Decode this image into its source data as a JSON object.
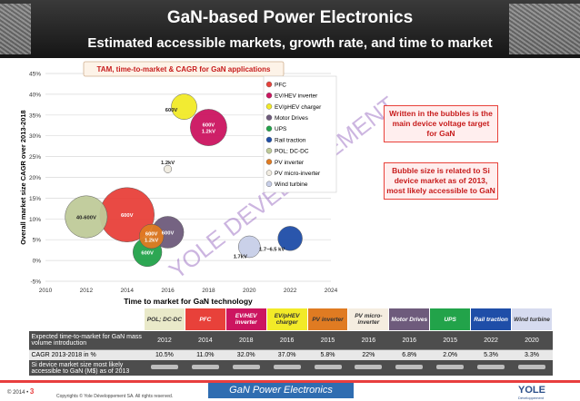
{
  "header": {
    "title": "GaN-based Power Electronics",
    "subtitle": "Estimated accessible markets, growth rate, and time to market"
  },
  "chart_data": {
    "type": "scatter",
    "subtype": "bubble",
    "title": "TAM, time-to-market & CAGR for GaN applications",
    "xlabel": "Time to market for GaN technology",
    "ylabel": "Overall market size CAGR over 2013-2018",
    "xlim": [
      2010,
      2024
    ],
    "ylim": [
      -5,
      45
    ],
    "x_ticks": [
      2010,
      2012,
      2014,
      2016,
      2018,
      2020,
      2022,
      2024
    ],
    "y_ticks": [
      "-5%",
      "0%",
      "5%",
      "10%",
      "15%",
      "20%",
      "25%",
      "30%",
      "35%",
      "40%",
      "45%"
    ],
    "y_unit": "%",
    "grid": true,
    "legend_position": "right",
    "watermark": "YOLE DEVELOPPEMENT",
    "series": [
      {
        "name": "PFC",
        "color": "#e8413a",
        "x": 2014,
        "y": 11,
        "size": 1.0,
        "label": "600V"
      },
      {
        "name": "EV/HEV inverter",
        "color": "#cc1560",
        "x": 2018,
        "y": 32,
        "size": 0.45,
        "label": "600V\n1.2kV"
      },
      {
        "name": "EV/pHEV charger",
        "color": "#f2ea28",
        "x": 2016.8,
        "y": 37,
        "size": 0.22,
        "label": "600V"
      },
      {
        "name": "Motor Drives",
        "color": "#6e5b7c",
        "x": 2016,
        "y": 6.8,
        "size": 0.34,
        "label": "600V"
      },
      {
        "name": "UPS",
        "color": "#22a34a",
        "x": 2015,
        "y": 2,
        "size": 0.28,
        "label": "600V"
      },
      {
        "name": "Rail traction",
        "color": "#1f4ea8",
        "x": 2022,
        "y": 5.3,
        "size": 0.2,
        "label": "1.7~6.5 kV"
      },
      {
        "name": "POL; DC-DC",
        "color": "#bfcb99",
        "x": 2012,
        "y": 10.5,
        "size": 0.6,
        "label": "40-600V"
      },
      {
        "name": "PV inverter",
        "color": "#e07b22",
        "x": 2015.2,
        "y": 5.8,
        "size": 0.2,
        "label": "600V\n1.2kV"
      },
      {
        "name": "PV micro-inverter",
        "color": "#f0ebe0",
        "x": 2016,
        "y": 22,
        "size": 0.02,
        "label": "1.2kV"
      },
      {
        "name": "Wind turbine",
        "color": "#c8cfe8",
        "x": 2020,
        "y": 3.3,
        "size": 0.16,
        "label": "1.7kV"
      }
    ]
  },
  "callouts": {
    "voltage": "Written in the bubbles is the main device voltage target for GaN",
    "size": "Bubble size is related to Si device market as of 2013, most likely accessible to GaN"
  },
  "table": {
    "columns": [
      {
        "label": "POL; DC-DC",
        "bg": "#e9e9c9",
        "fg": "#333333"
      },
      {
        "label": "PFC",
        "bg": "#e8413a",
        "fg": "#ffffff"
      },
      {
        "label": "EV/HEV inverter",
        "bg": "#cc1560",
        "fg": "#ffffff"
      },
      {
        "label": "EV/pHEV charger",
        "bg": "#f2ea28",
        "fg": "#333333"
      },
      {
        "label": "PV inverter",
        "bg": "#e07b22",
        "fg": "#333333"
      },
      {
        "label": "PV micro-inverter",
        "bg": "#f5ede0",
        "fg": "#333333"
      },
      {
        "label": "Motor Drives",
        "bg": "#6e5b7c",
        "fg": "#ffffff"
      },
      {
        "label": "UPS",
        "bg": "#22a34a",
        "fg": "#ffffff"
      },
      {
        "label": "Rail traction",
        "bg": "#1f4ea8",
        "fg": "#ffffff"
      },
      {
        "label": "Wind turbine",
        "bg": "#d6dbef",
        "fg": "#333333"
      }
    ],
    "rows": [
      {
        "label": "Expected time-to-market for GaN mass volume introduction",
        "values": [
          "2012",
          "2014",
          "2018",
          "2016",
          "2015",
          "2016",
          "2016",
          "2015",
          "2022",
          "2020"
        ]
      },
      {
        "label": "CAGR 2013-2018 in %",
        "values": [
          "10.5%",
          "11.0%",
          "32.0%",
          "37.0%",
          "5.8%",
          "22%",
          "6.8%",
          "2.0%",
          "5.3%",
          "3.3%"
        ]
      },
      {
        "label": "Si device market size most likely accessible to GaN (M$) as of 2013",
        "values": [
          "",
          "",
          "",
          "",
          "",
          "",
          "",
          "",
          "",
          ""
        ]
      }
    ]
  },
  "footer": {
    "copyright_year": "© 2014 •",
    "page": "3",
    "copyright": "Copyrights © Yole Développement SA. All rights reserved.",
    "title": "GaN Power Electronics",
    "logo": "YOLE",
    "logo_sub": "Développement"
  }
}
